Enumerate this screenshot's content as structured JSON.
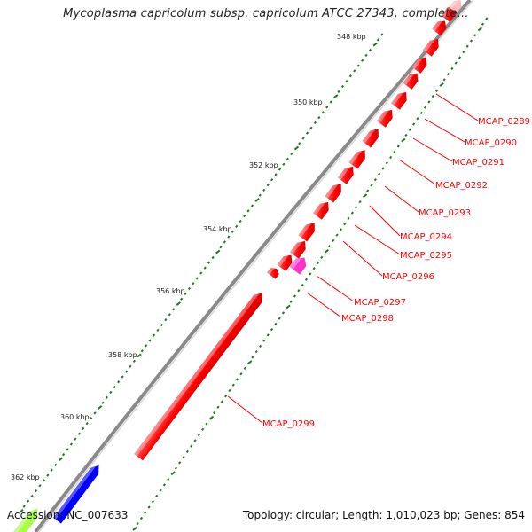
{
  "title": "Mycoplasma capricolum subsp. capricolum ATCC 27343, complete…",
  "footer": {
    "accession": "Accession: NC_007633",
    "summary": "Topology: circular; Length: 1,010,023 bp; Genes: 854"
  },
  "colors": {
    "backbone": "#8a8a8a",
    "tick": "#1a7a1a",
    "gene_red": "#ff0000",
    "gene_magenta": "#ff33cc",
    "gene_blue": "#0000ff",
    "gene_green": "#aaff44",
    "label": "#ff0000"
  },
  "ticks": [
    "348 kbp",
    "350 kbp",
    "352 kbp",
    "354 kbp",
    "356 kbp",
    "358 kbp",
    "360 kbp",
    "362 kbp"
  ],
  "genes": [
    {
      "label": "MCAP_0289",
      "color": "red"
    },
    {
      "label": "MCAP_0290",
      "color": "red"
    },
    {
      "label": "MCAP_0291",
      "color": "red"
    },
    {
      "label": "MCAP_0292",
      "color": "red"
    },
    {
      "label": "MCAP_0293",
      "color": "red"
    },
    {
      "label": "MCAP_0294",
      "color": "red"
    },
    {
      "label": "MCAP_0295",
      "color": "red"
    },
    {
      "label": "MCAP_0296",
      "color": "red"
    },
    {
      "label": "MCAP_0297",
      "color": "magenta"
    },
    {
      "label": "MCAP_0298",
      "color": "red"
    },
    {
      "label": "MCAP_0299",
      "color": "red"
    }
  ]
}
